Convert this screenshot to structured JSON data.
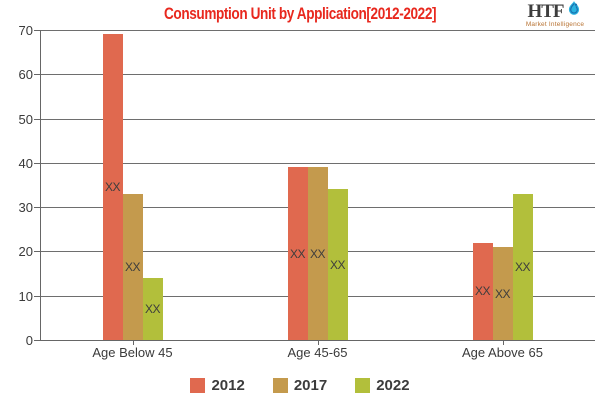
{
  "title": "Consumption Unit by  Application[2012-2022]",
  "logo": {
    "name": "HTF",
    "tagline": "Market Intelligence",
    "icon": "water-swirl-icon",
    "icon_color_dark": "#1a6fae",
    "icon_color_light": "#2bb3e0",
    "name_color": "#3d3d3d",
    "tagline_color": "#b87333"
  },
  "style": {
    "title_color": "#e8281e",
    "grid_color": "#6e6e6e",
    "axis_color": "#666666",
    "tick_label_color": "#3a3a3a",
    "bar_label_color": "#3d3d3d",
    "background": "#ffffff"
  },
  "chart_data": {
    "type": "bar",
    "title": "Consumption Unit by  Application[2012-2022]",
    "categories": [
      "Age Below 45",
      "Age 45-65",
      "Age Above 65"
    ],
    "series": [
      {
        "name": "2012",
        "color": "#e0694f",
        "values": [
          69,
          39,
          22
        ]
      },
      {
        "name": "2017",
        "color": "#c49a4d",
        "values": [
          33,
          39,
          21
        ]
      },
      {
        "name": "2022",
        "color": "#b2bf3b",
        "values": [
          14,
          34,
          33
        ]
      }
    ],
    "bar_label": "XX",
    "xlabel": "",
    "ylabel": "",
    "ylim": [
      0,
      70
    ],
    "ytick_step": 10,
    "yticks": [
      0,
      10,
      20,
      30,
      40,
      50,
      60,
      70
    ],
    "grid": true,
    "legend_position": "bottom"
  }
}
